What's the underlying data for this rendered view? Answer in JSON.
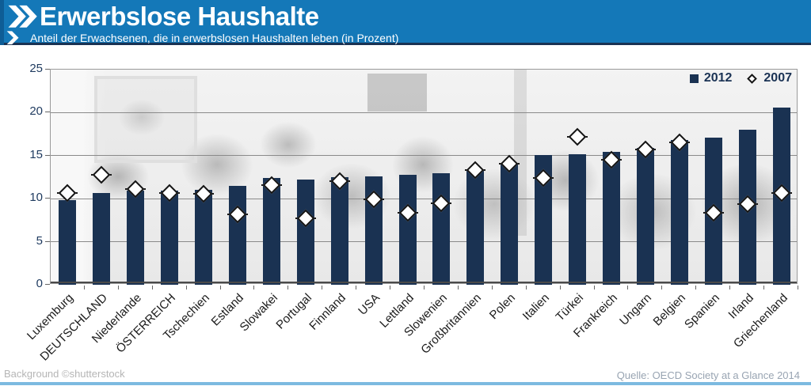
{
  "header": {
    "title": "Erwerbslose Haushalte",
    "subtitle": "Anteil der Erwachsenen, die in erwerbslosen Haushalten leben (in Prozent)",
    "logo_icon": "oecd-double-chevron-icon"
  },
  "chart_data": {
    "type": "bar",
    "title": "Erwerbslose Haushalte",
    "subtitle": "Anteil der Erwachsenen, die in erwerbslosen Haushalten leben (in Prozent)",
    "categories": [
      "Luxemburg",
      "DEUTSCHLAND",
      "Niederlande",
      "ÖSTERREICH",
      "Tschechien",
      "Estland",
      "Slowakei",
      "Portugal",
      "Finnland",
      "USA",
      "Lettland",
      "Slowenien",
      "Großbritannien",
      "Polen",
      "Italien",
      "Türkei",
      "Frankreich",
      "Ungarn",
      "Belgien",
      "Spanien",
      "Irland",
      "Griechenland"
    ],
    "series": [
      {
        "name": "2012",
        "type": "bar",
        "color": "#1a3252",
        "values": [
          9.8,
          10.7,
          10.9,
          10.9,
          11.0,
          11.5,
          12.4,
          12.2,
          12.5,
          12.6,
          12.8,
          13.0,
          13.3,
          14.0,
          15.1,
          15.2,
          15.4,
          15.9,
          16.8,
          17.1,
          18.0,
          20.6
        ]
      },
      {
        "name": "2007",
        "type": "diamond",
        "color": "#ffffff",
        "outline": "#141414",
        "values": [
          10.7,
          12.8,
          11.1,
          10.7,
          10.6,
          8.2,
          11.6,
          7.7,
          12.0,
          9.9,
          8.4,
          9.5,
          13.3,
          14.1,
          12.4,
          17.2,
          14.5,
          15.7,
          16.5,
          8.4,
          9.4,
          10.7
        ]
      }
    ],
    "xlabel": "",
    "ylabel": "",
    "ylim": [
      0,
      25
    ],
    "yticks": [
      0,
      5,
      10,
      15,
      20,
      25
    ],
    "grid": true,
    "legend_position": "top-right"
  },
  "footer": {
    "left": "Background ©shutterstock",
    "right": "Quelle: OECD  Society at a Glance 2014"
  },
  "colors": {
    "header_blue": "#1478b8",
    "header_stripe_blue": "#0e5d96",
    "separator_navy": "#1a3252",
    "bar_navy": "#1a3252",
    "marker_white": "#ffffff",
    "marker_outline": "#141414",
    "grid_gray": "#8a8a8a",
    "frame_gray": "#9a9a9a",
    "axis_dark": "#4a4a4a",
    "tick_gray": "#666666",
    "y_label_navy": "#1e3a5f",
    "x_label_dark": "#1b1b1b",
    "footer_left_gray": "#b5b5b5",
    "footer_right_gray": "#98a4b2",
    "bottom_line_blue": "#7cbae0"
  }
}
